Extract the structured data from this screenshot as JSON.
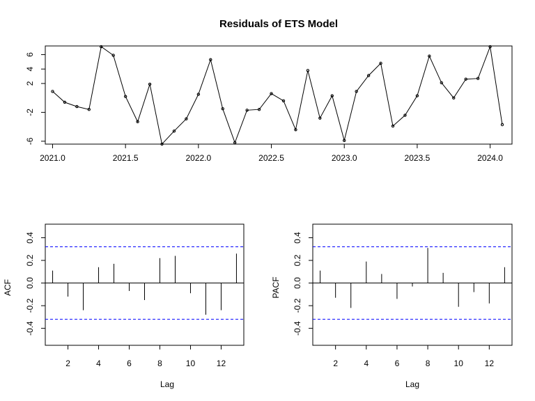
{
  "chart_data": [
    {
      "type": "line",
      "title": "Residuals of ETS Model",
      "xlabel": "",
      "ylabel": "",
      "xlim": [
        2020.95,
        2024.15
      ],
      "ylim": [
        -6.4,
        7.2
      ],
      "xticks": [
        2021.0,
        2021.5,
        2022.0,
        2022.5,
        2023.0,
        2023.5,
        2024.0
      ],
      "xtick_labels": [
        "2021.0",
        "2021.5",
        "2022.0",
        "2022.5",
        "2023.0",
        "2023.5",
        "2024.0"
      ],
      "yticks": [
        -6,
        -2,
        2,
        4,
        6
      ],
      "ytick_labels": [
        "-6",
        "-2",
        "2",
        "4",
        "6"
      ],
      "markers": "points",
      "x": [
        2021.0,
        2021.0833,
        2021.1667,
        2021.25,
        2021.3333,
        2021.4167,
        2021.5,
        2021.5833,
        2021.6667,
        2021.75,
        2021.8333,
        2021.9167,
        2022.0,
        2022.0833,
        2022.1667,
        2022.25,
        2022.3333,
        2022.4167,
        2022.5,
        2022.5833,
        2022.6667,
        2022.75,
        2022.8333,
        2022.9167,
        2023.0,
        2023.0833,
        2023.1667,
        2023.25,
        2023.3333,
        2023.4167,
        2023.5,
        2023.5833,
        2023.6667,
        2023.75,
        2023.8333,
        2023.9167,
        2024.0,
        2024.0833
      ],
      "y": [
        0.9,
        -0.6,
        -1.2,
        -1.6,
        7.1,
        5.9,
        0.2,
        -3.3,
        1.9,
        -6.4,
        -4.6,
        -2.9,
        0.5,
        5.3,
        -1.5,
        -6.2,
        -1.7,
        -1.6,
        0.6,
        -0.4,
        -4.4,
        3.8,
        -2.8,
        0.3,
        -5.9,
        0.9,
        3.1,
        4.8,
        -3.9,
        -2.4,
        0.3,
        5.8,
        2.1,
        0.0,
        2.6,
        2.7,
        7.1,
        -3.7
      ]
    },
    {
      "type": "bar",
      "subtype": "acf",
      "xlabel": "Lag",
      "ylabel": "ACF",
      "xlim": [
        0.52,
        13.48
      ],
      "ylim": [
        -0.55,
        0.52
      ],
      "xticks": [
        2,
        4,
        6,
        8,
        10,
        12
      ],
      "xtick_labels": [
        "2",
        "4",
        "6",
        "8",
        "10",
        "12"
      ],
      "yticks": [
        -0.4,
        -0.2,
        0.0,
        0.2,
        0.4
      ],
      "ytick_labels": [
        "-0.4",
        "-0.2",
        "0.0",
        "0.2",
        "0.4"
      ],
      "confidence_bounds": [
        0.32,
        -0.32
      ],
      "confidence_color": "#0000FF",
      "lags": [
        1,
        2,
        3,
        4,
        5,
        6,
        7,
        8,
        9,
        10,
        11,
        12,
        13
      ],
      "values": [
        0.11,
        -0.12,
        -0.24,
        0.14,
        0.17,
        -0.07,
        -0.15,
        0.22,
        0.24,
        -0.09,
        -0.28,
        -0.24,
        0.26
      ]
    },
    {
      "type": "bar",
      "subtype": "pacf",
      "xlabel": "Lag",
      "ylabel": "PACF",
      "xlim": [
        0.52,
        13.48
      ],
      "ylim": [
        -0.55,
        0.52
      ],
      "xticks": [
        2,
        4,
        6,
        8,
        10,
        12
      ],
      "xtick_labels": [
        "2",
        "4",
        "6",
        "8",
        "10",
        "12"
      ],
      "yticks": [
        -0.4,
        -0.2,
        0.0,
        0.2,
        0.4
      ],
      "ytick_labels": [
        "-0.4",
        "-0.2",
        "0.0",
        "0.2",
        "0.4"
      ],
      "confidence_bounds": [
        0.32,
        -0.32
      ],
      "confidence_color": "#0000FF",
      "lags": [
        1,
        2,
        3,
        4,
        5,
        6,
        7,
        8,
        9,
        10,
        11,
        12,
        13
      ],
      "values": [
        0.11,
        -0.13,
        -0.22,
        0.19,
        0.08,
        -0.14,
        -0.03,
        0.31,
        0.09,
        -0.21,
        -0.08,
        -0.18,
        0.14
      ]
    }
  ]
}
